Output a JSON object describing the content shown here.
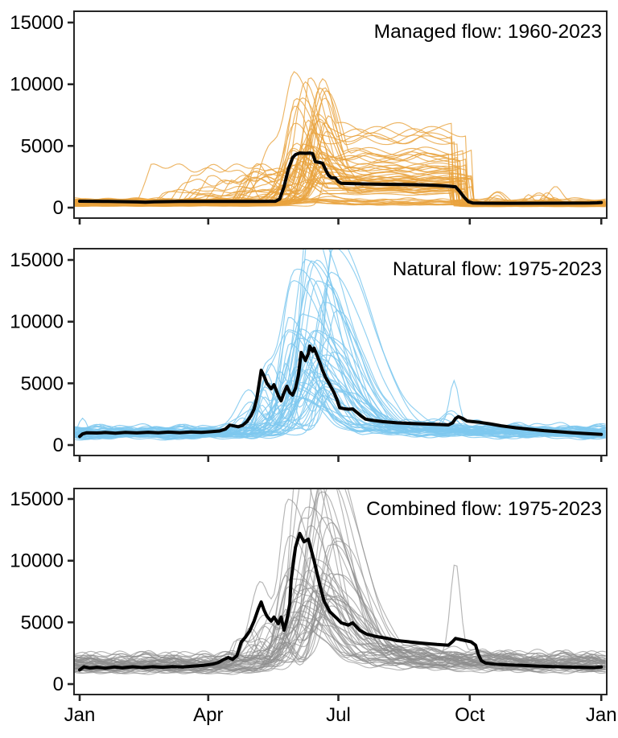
{
  "figure": {
    "background": "#FFFFFF"
  },
  "axes": {
    "y_ticks": [
      0,
      5000,
      10000,
      15000
    ],
    "y_tick_labels": [
      "0",
      "5000",
      "10000",
      "15000"
    ],
    "x_ticks": [
      {
        "day": 0,
        "label": "Jan"
      },
      {
        "day": 90,
        "label": "Apr"
      },
      {
        "day": 181,
        "label": "Jul"
      },
      {
        "day": 273,
        "label": "Oct"
      },
      {
        "day": 365,
        "label": "Jan"
      }
    ],
    "ylim": [
      0,
      15000
    ],
    "grid": "off",
    "x_labels_on": "bottom-panel-only"
  },
  "chart_data": [
    {
      "id": "managed",
      "type": "line",
      "title": "Managed flow: 1960-2023",
      "years_label": "1960-2023",
      "n_traces": 64,
      "trace_color": "#E8A33D",
      "trace_opacity": 0.8,
      "mean_color": "#000000",
      "ylim": [
        0,
        15000
      ],
      "mean_series": [
        [
          0,
          520
        ],
        [
          20,
          505
        ],
        [
          40,
          460
        ],
        [
          46,
          435
        ],
        [
          52,
          470
        ],
        [
          70,
          500
        ],
        [
          100,
          505
        ],
        [
          125,
          510
        ],
        [
          137,
          515
        ],
        [
          140,
          700
        ],
        [
          143,
          1700
        ],
        [
          146,
          3100
        ],
        [
          149,
          4050
        ],
        [
          151,
          4300
        ],
        [
          154,
          4430
        ],
        [
          158,
          4400
        ],
        [
          161,
          4430
        ],
        [
          163,
          4380
        ],
        [
          165,
          3720
        ],
        [
          168,
          3660
        ],
        [
          170,
          3600
        ],
        [
          172,
          3100
        ],
        [
          174,
          2650
        ],
        [
          176,
          2430
        ],
        [
          179,
          2400
        ],
        [
          181,
          2100
        ],
        [
          183,
          1970
        ],
        [
          195,
          1930
        ],
        [
          210,
          1900
        ],
        [
          225,
          1880
        ],
        [
          238,
          1850
        ],
        [
          250,
          1800
        ],
        [
          256,
          1760
        ],
        [
          260,
          1720
        ],
        [
          263,
          1690
        ],
        [
          266,
          1300
        ],
        [
          269,
          850
        ],
        [
          272,
          480
        ],
        [
          275,
          380
        ],
        [
          282,
          360
        ],
        [
          300,
          355
        ],
        [
          320,
          360
        ],
        [
          340,
          365
        ],
        [
          357,
          370
        ],
        [
          362,
          390
        ],
        [
          365,
          420
        ]
      ],
      "ensemble": {
        "seed": 1960,
        "base": [
          110,
          650
        ],
        "quiet_prob": 0.12,
        "early_prob": 0.18,
        "early_start": [
          35,
          120
        ],
        "early_level": [
          700,
          3300
        ],
        "peak_day": [
          143,
          175
        ],
        "amp": [
          1800,
          10800
        ],
        "rise_w": [
          4,
          9
        ],
        "fall_w": [
          8,
          18
        ],
        "plateau_frac": [
          0.3,
          0.62
        ],
        "plateau_end": [
          259,
          277
        ],
        "late_prob": 0.15,
        "late_day": [
          290,
          335
        ],
        "late_amp": [
          400,
          1400
        ],
        "managed": true,
        "prebump_prob": 0.35,
        "prebump_off": [
          14,
          30
        ],
        "prebump_amp": [
          0.2,
          0.5
        ]
      }
    },
    {
      "id": "natural",
      "type": "line",
      "title": "Natural flow: 1975-2023",
      "years_label": "1975-2023",
      "n_traces": 49,
      "trace_color": "#7EC8EF",
      "trace_opacity": 0.85,
      "mean_color": "#000000",
      "ylim": [
        0,
        15000
      ],
      "mean_series": [
        [
          0,
          700
        ],
        [
          2,
          900
        ],
        [
          5,
          1000
        ],
        [
          12,
          975
        ],
        [
          18,
          1015
        ],
        [
          25,
          965
        ],
        [
          32,
          1030
        ],
        [
          40,
          985
        ],
        [
          48,
          1040
        ],
        [
          55,
          1000
        ],
        [
          62,
          1050
        ],
        [
          70,
          1005
        ],
        [
          78,
          1060
        ],
        [
          85,
          1025
        ],
        [
          92,
          1080
        ],
        [
          98,
          1140
        ],
        [
          102,
          1300
        ],
        [
          105,
          1620
        ],
        [
          108,
          1550
        ],
        [
          111,
          1480
        ],
        [
          114,
          1600
        ],
        [
          117,
          1900
        ],
        [
          120,
          2400
        ],
        [
          122,
          2900
        ],
        [
          124,
          3800
        ],
        [
          126,
          5300
        ],
        [
          127,
          6060
        ],
        [
          129,
          5600
        ],
        [
          131,
          5000
        ],
        [
          134,
          4560
        ],
        [
          136,
          4890
        ],
        [
          139,
          4000
        ],
        [
          141,
          3590
        ],
        [
          143,
          4250
        ],
        [
          145,
          4760
        ],
        [
          147,
          4250
        ],
        [
          149,
          4050
        ],
        [
          151,
          4600
        ],
        [
          153,
          5600
        ],
        [
          155,
          7500
        ],
        [
          157,
          7100
        ],
        [
          158,
          6850
        ],
        [
          160,
          7400
        ],
        [
          161,
          8020
        ],
        [
          163,
          7600
        ],
        [
          164,
          7850
        ],
        [
          166,
          7300
        ],
        [
          168,
          6700
        ],
        [
          170,
          6050
        ],
        [
          172,
          5500
        ],
        [
          175,
          4900
        ],
        [
          178,
          4250
        ],
        [
          180,
          3700
        ],
        [
          182,
          3020
        ],
        [
          185,
          2950
        ],
        [
          188,
          2900
        ],
        [
          191,
          2930
        ],
        [
          194,
          2650
        ],
        [
          197,
          2350
        ],
        [
          200,
          2100
        ],
        [
          205,
          2000
        ],
        [
          212,
          1900
        ],
        [
          222,
          1800
        ],
        [
          232,
          1750
        ],
        [
          242,
          1700
        ],
        [
          252,
          1660
        ],
        [
          258,
          1630
        ],
        [
          261,
          1800
        ],
        [
          263,
          2150
        ],
        [
          265,
          2300
        ],
        [
          268,
          2150
        ],
        [
          271,
          1950
        ],
        [
          275,
          1900
        ],
        [
          280,
          1840
        ],
        [
          287,
          1720
        ],
        [
          295,
          1560
        ],
        [
          305,
          1400
        ],
        [
          315,
          1280
        ],
        [
          325,
          1170
        ],
        [
          335,
          1080
        ],
        [
          345,
          1000
        ],
        [
          355,
          930
        ],
        [
          365,
          870
        ]
      ],
      "ensemble": {
        "seed": 1975,
        "base": [
          550,
          1400
        ],
        "peak_day": [
          146,
          180
        ],
        "amp": [
          2600,
          18000
        ],
        "rise_w": [
          5,
          11
        ],
        "fall_w": [
          14,
          28
        ],
        "tail": 0.16,
        "tail_tau": 55,
        "prebump_prob": 0.7,
        "prebump_off": [
          16,
          38
        ],
        "prebump_amp": [
          0.12,
          0.45
        ],
        "late_prob": 0.08,
        "late_day": [
          255,
          270
        ],
        "late_amp": [
          400,
          1400
        ],
        "spike_idx": 44,
        "spike": {
          "d": 262,
          "a": 3200,
          "w": 3
        },
        "jan_spike_idx": 7,
        "jan_spike": {
          "d": 2,
          "a": 1300,
          "w": 3
        }
      }
    },
    {
      "id": "combined",
      "type": "line",
      "title": "Combined flow: 1975-2023",
      "years_label": "1975-2023",
      "n_traces": 49,
      "trace_color": "#8E8E8E",
      "trace_opacity": 0.65,
      "mean_color": "#000000",
      "ylim": [
        0,
        15000
      ],
      "mean_series": [
        [
          0,
          1150
        ],
        [
          3,
          1400
        ],
        [
          7,
          1300
        ],
        [
          12,
          1360
        ],
        [
          18,
          1290
        ],
        [
          24,
          1380
        ],
        [
          30,
          1320
        ],
        [
          37,
          1400
        ],
        [
          44,
          1340
        ],
        [
          51,
          1410
        ],
        [
          58,
          1360
        ],
        [
          65,
          1420
        ],
        [
          72,
          1380
        ],
        [
          80,
          1460
        ],
        [
          87,
          1520
        ],
        [
          93,
          1620
        ],
        [
          97,
          1750
        ],
        [
          101,
          2000
        ],
        [
          104,
          2150
        ],
        [
          107,
          2000
        ],
        [
          110,
          2300
        ],
        [
          113,
          3400
        ],
        [
          116,
          3800
        ],
        [
          119,
          4300
        ],
        [
          122,
          5100
        ],
        [
          125,
          6100
        ],
        [
          127,
          6650
        ],
        [
          129,
          6000
        ],
        [
          131,
          5500
        ],
        [
          134,
          5100
        ],
        [
          136,
          5430
        ],
        [
          139,
          4890
        ],
        [
          141,
          5430
        ],
        [
          143,
          4370
        ],
        [
          145,
          5200
        ],
        [
          147,
          6500
        ],
        [
          148,
          8480
        ],
        [
          151,
          11080
        ],
        [
          154,
          12210
        ],
        [
          157,
          11530
        ],
        [
          160,
          11740
        ],
        [
          164,
          10000
        ],
        [
          168,
          8040
        ],
        [
          171,
          6730
        ],
        [
          175,
          5870
        ],
        [
          180,
          5320
        ],
        [
          183,
          4960
        ],
        [
          188,
          4780
        ],
        [
          191,
          4960
        ],
        [
          196,
          4350
        ],
        [
          201,
          4040
        ],
        [
          207,
          3870
        ],
        [
          215,
          3710
        ],
        [
          222,
          3520
        ],
        [
          230,
          3430
        ],
        [
          240,
          3310
        ],
        [
          250,
          3210
        ],
        [
          258,
          3150
        ],
        [
          261,
          3450
        ],
        [
          263,
          3700
        ],
        [
          266,
          3620
        ],
        [
          270,
          3520
        ],
        [
          274,
          3420
        ],
        [
          277,
          3150
        ],
        [
          279,
          2400
        ],
        [
          281,
          1900
        ],
        [
          284,
          1700
        ],
        [
          290,
          1620
        ],
        [
          300,
          1560
        ],
        [
          310,
          1510
        ],
        [
          320,
          1460
        ],
        [
          330,
          1420
        ],
        [
          340,
          1390
        ],
        [
          350,
          1360
        ],
        [
          360,
          1340
        ],
        [
          365,
          1390
        ]
      ],
      "ensemble": {
        "seed": 2023,
        "base": [
          950,
          2300
        ],
        "peak_day": [
          145,
          180
        ],
        "amp": [
          3500,
          17500
        ],
        "rise_w": [
          5,
          11
        ],
        "fall_w": [
          15,
          30
        ],
        "tail": 0.2,
        "tail_tau": 60,
        "prebump_prob": 0.75,
        "prebump_off": [
          15,
          35
        ],
        "prebump_amp": [
          0.15,
          0.5
        ],
        "early_prob": 0.15,
        "early_start": [
          95,
          118
        ],
        "early_level": [
          1600,
          4300
        ],
        "late_prob": 0.08,
        "late_day": [
          255,
          270
        ],
        "late_amp": [
          500,
          1800
        ],
        "spike_idx": 40,
        "spike": {
          "d": 263,
          "a": 7800,
          "w": 3.5
        }
      }
    }
  ]
}
